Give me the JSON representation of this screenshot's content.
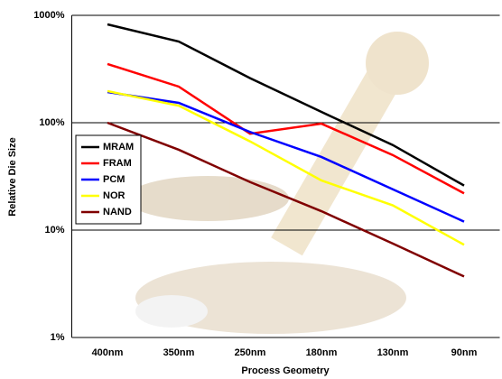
{
  "chart_data": {
    "type": "line",
    "x_label": "Process Geometry",
    "y_label": "Relative Die Size",
    "categories": [
      "400nm",
      "350nm",
      "250nm",
      "180nm",
      "130nm",
      "90nm"
    ],
    "log_scale": true,
    "grid": true,
    "legend": "left",
    "ylim": [
      1,
      1000
    ],
    "yticks": [
      {
        "value": 1,
        "label": "1%"
      },
      {
        "value": 10,
        "label": "10%"
      },
      {
        "value": 100,
        "label": "100%"
      },
      {
        "value": 1000,
        "label": "1000%"
      }
    ],
    "series": [
      {
        "name": "MRAM",
        "color": "#000000",
        "values": [
          824,
          570,
          260,
          126,
          62,
          26
        ]
      },
      {
        "name": "FRAM",
        "color": "#ff0000",
        "values": [
          352,
          217,
          79,
          98,
          50,
          22
        ]
      },
      {
        "name": "PCM",
        "color": "#0000ff",
        "values": [
          193,
          153,
          82,
          48,
          24,
          12
        ]
      },
      {
        "name": "NOR",
        "color": "#ffff00",
        "values": [
          197,
          144,
          67,
          29,
          17,
          7.3
        ]
      },
      {
        "name": "NAND",
        "color": "#800000",
        "values": [
          100,
          56,
          28,
          15,
          7.5,
          3.7
        ]
      }
    ]
  }
}
